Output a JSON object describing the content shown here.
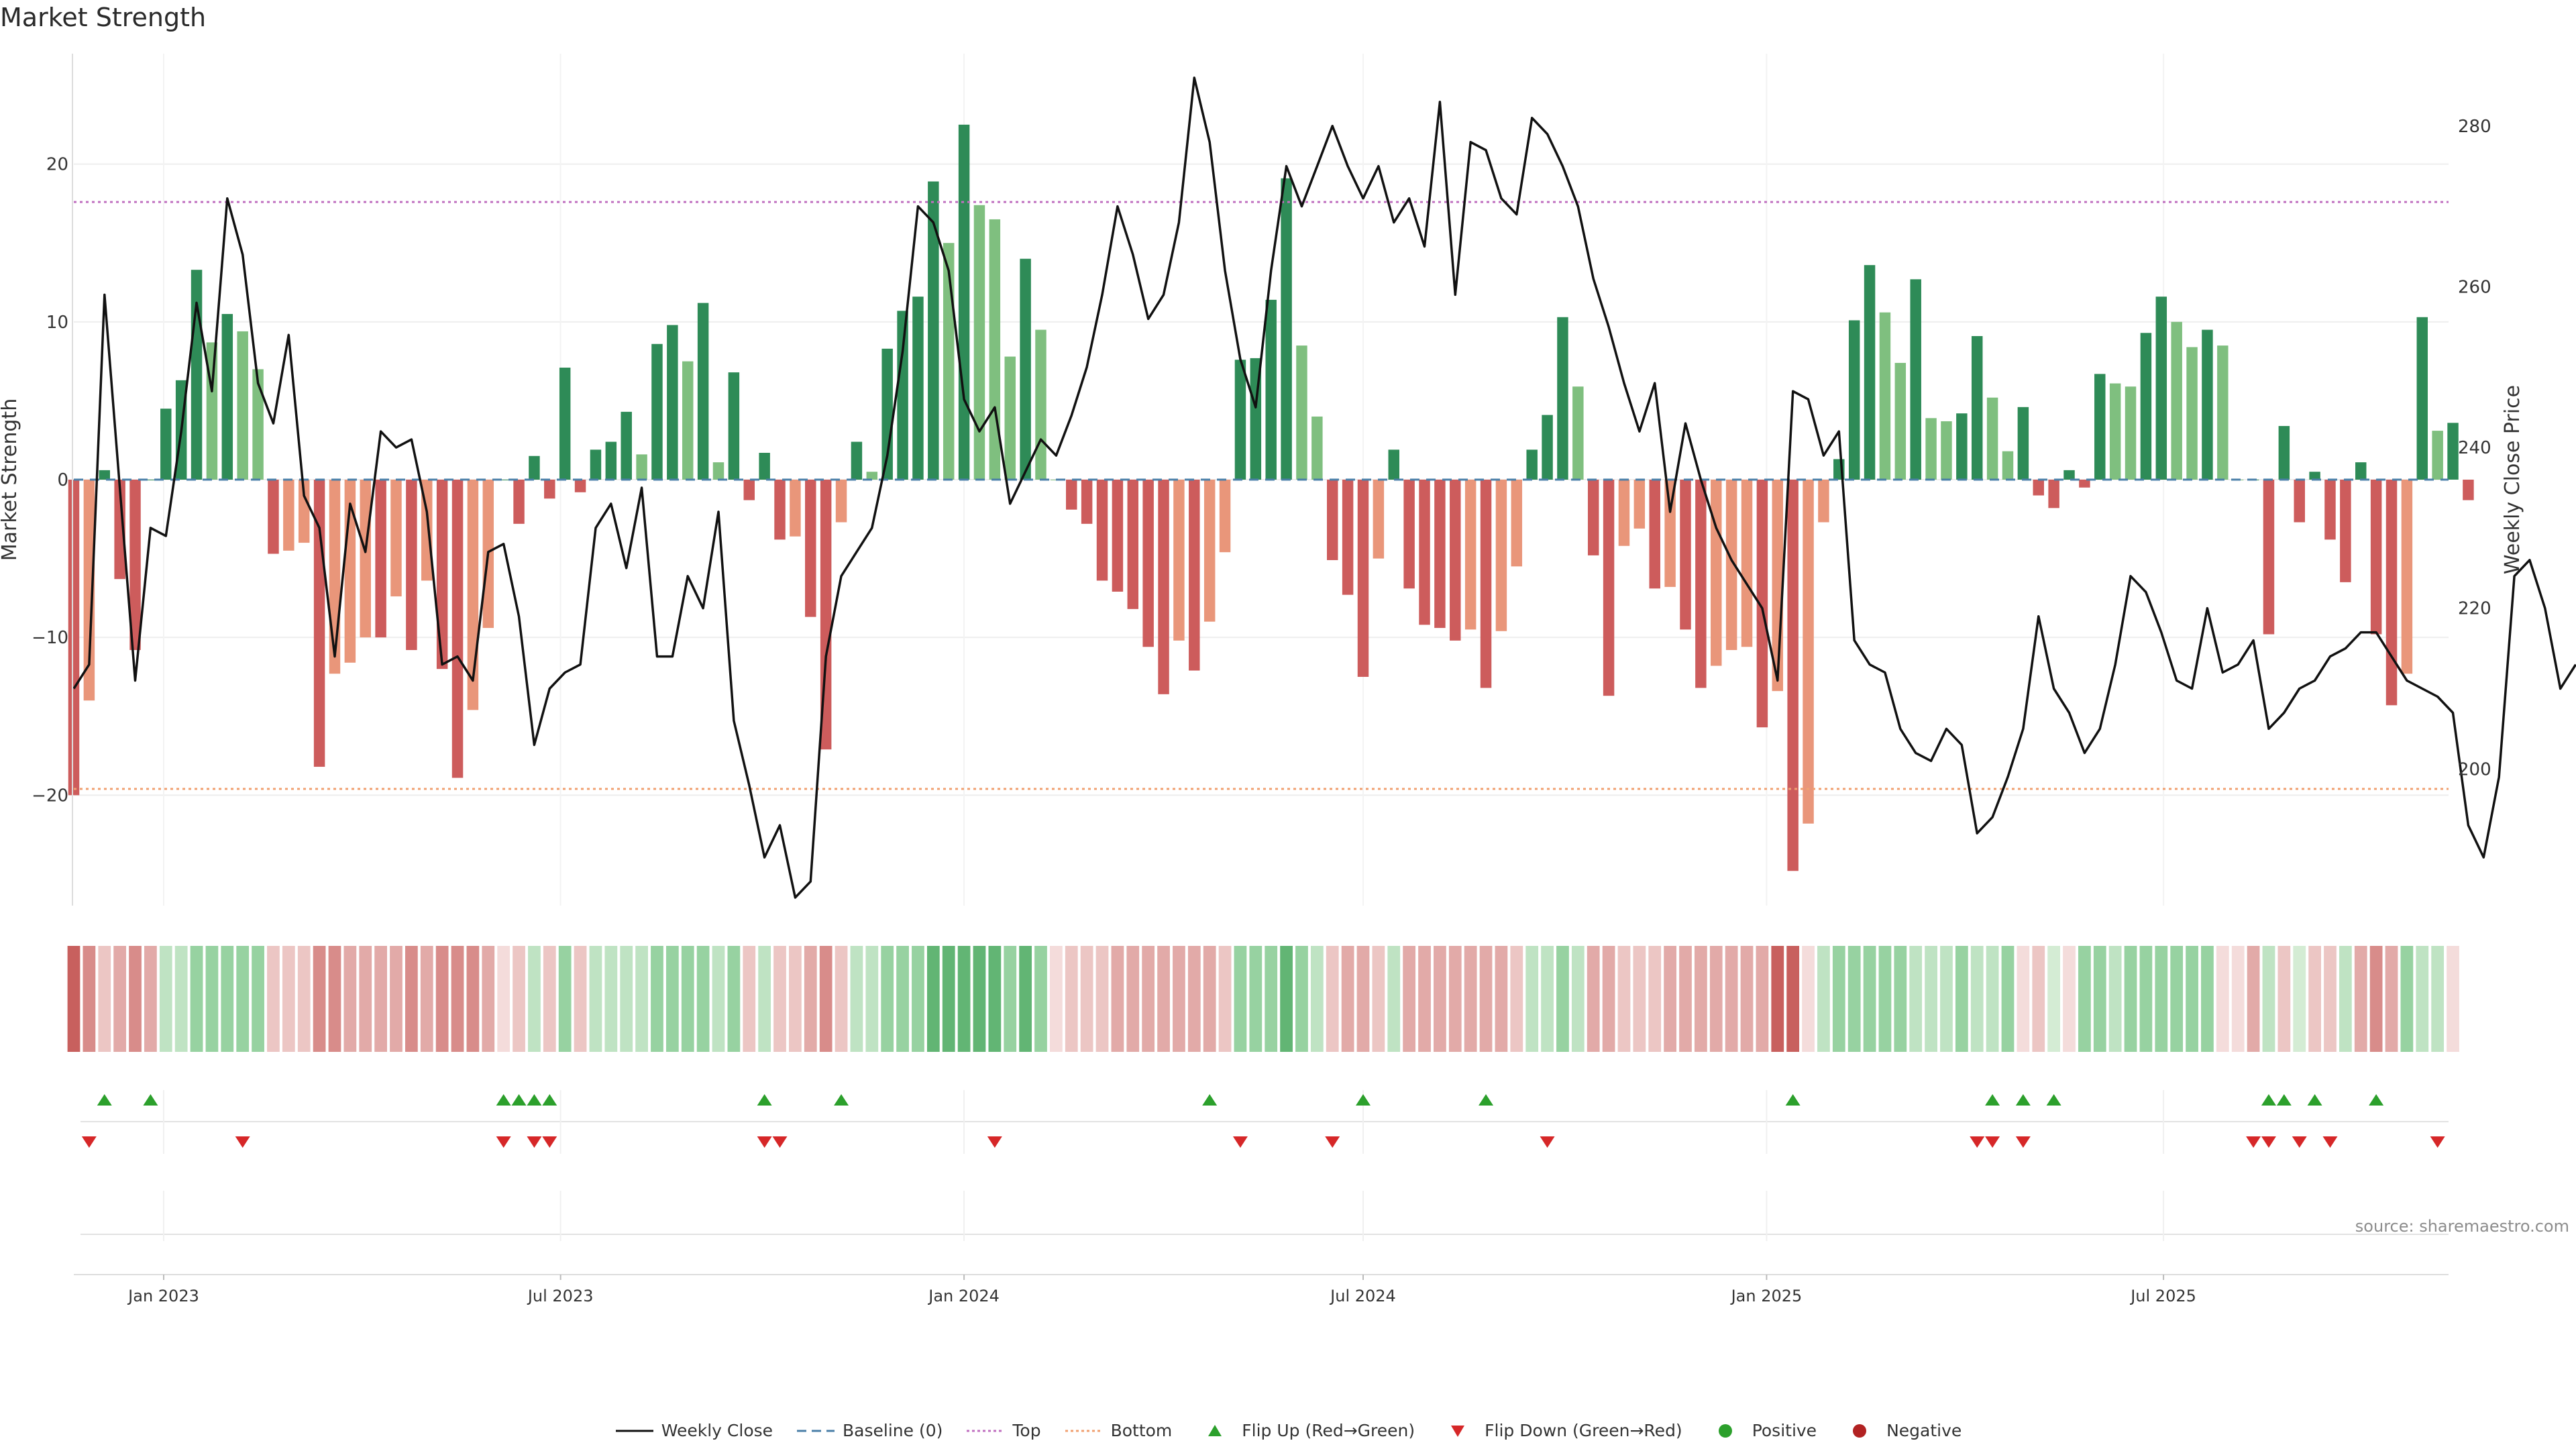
{
  "title": "Market Strength",
  "source": "source: sharemaestro.com",
  "colors": {
    "green_dark": "#2e8b57",
    "green_light": "#7fbf7f",
    "red_dark": "#cd5c5c",
    "red_light": "#e9967a",
    "line": "#111111",
    "baseline": "#4a7fa8",
    "top": "#c070c0",
    "bottom": "#f0a070",
    "flip_up": "#2ca02c",
    "flip_down": "#d62728",
    "positive": "#2ca02c",
    "negative": "#b22222"
  },
  "legend": [
    {
      "label": "Weekly Close",
      "kind": "line-solid",
      "color": "#111111"
    },
    {
      "label": "Baseline (0)",
      "kind": "line-dash",
      "color": "#4a7fa8"
    },
    {
      "label": "Top",
      "kind": "line-dot",
      "color": "#c070c0"
    },
    {
      "label": "Bottom",
      "kind": "line-dot",
      "color": "#f0a070"
    },
    {
      "label": "Flip Up (Red→Green)",
      "kind": "tri-up",
      "color": "#2ca02c"
    },
    {
      "label": "Flip Down (Green→Red)",
      "kind": "tri-down",
      "color": "#d62728"
    },
    {
      "label": "Positive",
      "kind": "dot",
      "color": "#2ca02c"
    },
    {
      "label": "Negative",
      "kind": "dot",
      "color": "#b22222"
    }
  ],
  "chart_data": {
    "type": "bar",
    "title": "Market Strength",
    "ylabel": "Market Strength",
    "y2label": "Weekly Close Price",
    "ylim": [
      -27,
      27
    ],
    "y2lim": [
      183,
      289
    ],
    "yticks": [
      20,
      10,
      0,
      -10,
      -20
    ],
    "y2ticks": [
      280,
      260,
      240,
      220,
      200
    ],
    "top_level": 17.6,
    "bottom_level": -19.6,
    "x_start": "2022-11-21",
    "x_step_days": 7,
    "x_end": "2025-11-08",
    "xticks": [
      {
        "date": "2023-01-01",
        "label": "Jan 2023"
      },
      {
        "date": "2023-07-01",
        "label": "Jul 2023"
      },
      {
        "date": "2024-01-01",
        "label": "Jan 2024"
      },
      {
        "date": "2024-07-01",
        "label": "Jul 2024"
      },
      {
        "date": "2025-01-01",
        "label": "Jan 2025"
      },
      {
        "date": "2025-07-01",
        "label": "Jul 2025"
      }
    ],
    "grid": true,
    "legend_position": "bottom",
    "series": [
      {
        "name": "Market Strength",
        "values": [
          -20,
          -14,
          0.6,
          -6.3,
          -10.8,
          0,
          4.5,
          6.3,
          13.3,
          8.7,
          10.5,
          9.4,
          7,
          -4.7,
          -4.5,
          -4,
          -18.2,
          -12.3,
          -11.6,
          -10,
          -10,
          -7.4,
          -10.8,
          -6.4,
          -12,
          -18.9,
          -14.6,
          -9.4,
          0,
          -2.8,
          1.5,
          -1.2,
          7.1,
          -0.8,
          1.9,
          2.4,
          4.3,
          1.6,
          8.6,
          9.8,
          7.5,
          11.2,
          1.1,
          6.8,
          -1.3,
          1.7,
          -3.8,
          -3.6,
          -8.7,
          -17.1,
          -2.7,
          2.4,
          0.5,
          8.3,
          10.7,
          11.6,
          18.9,
          15,
          22.5,
          17.4,
          16.5,
          7.8,
          14,
          9.5,
          0,
          -1.9,
          -2.8,
          -6.4,
          -7.1,
          -8.2,
          -10.6,
          -13.6,
          -10.2,
          -12.1,
          -9,
          -4.6,
          7.6,
          7.7,
          11.4,
          19.1,
          8.5,
          4,
          -5.1,
          -7.3,
          -12.5,
          -5,
          1.9,
          -6.9,
          -9.2,
          -9.4,
          -10.2,
          -9.5,
          -13.2,
          -9.6,
          -5.5,
          1.9,
          4.1,
          10.3,
          5.9,
          -4.8,
          -13.7,
          -4.2,
          -3.1,
          -6.9,
          -6.8,
          -9.5,
          -13.2,
          -11.8,
          -10.8,
          -10.6,
          -15.7,
          -13.4,
          -24.8,
          -21.8,
          -2.7,
          1.3,
          10.1,
          13.6,
          10.6,
          7.4,
          12.7,
          3.9,
          3.7,
          4.2,
          9.1,
          5.2,
          1.8,
          4.6,
          -1,
          -1.8,
          0.6,
          -0.5,
          6.7,
          6.1,
          5.9,
          9.3,
          11.6,
          10,
          8.4,
          9.5,
          8.5,
          0,
          0,
          -9.8,
          3.4,
          -2.7,
          0.5,
          -3.8,
          -6.5,
          1.1,
          -9.8,
          -14.3,
          -12.3,
          10.3,
          3.1,
          3.6,
          -1.3
        ]
      },
      {
        "name": "Weekly Close",
        "values": [
          210,
          213,
          259,
          235,
          211,
          230,
          229,
          242,
          258,
          247,
          271,
          264,
          248,
          243,
          254,
          234,
          230,
          214,
          233,
          227,
          242,
          240,
          241,
          232,
          213,
          214,
          211,
          227,
          228,
          219,
          203,
          210,
          212,
          213,
          230,
          233,
          225,
          235,
          214,
          214,
          224,
          220,
          232,
          206,
          198,
          189,
          193,
          184,
          186,
          214,
          224,
          227,
          230,
          239,
          252,
          270,
          268,
          262,
          246,
          242,
          245,
          233,
          237,
          241,
          239,
          244,
          250,
          259,
          270,
          264,
          256,
          259,
          268,
          286,
          278,
          262,
          251,
          245,
          262,
          275,
          270,
          275,
          280,
          275,
          271,
          275,
          268,
          271,
          265,
          283,
          259,
          278,
          277,
          271,
          269,
          281,
          279,
          275,
          270,
          261,
          255,
          248,
          242,
          248,
          232,
          243,
          236,
          230,
          226,
          223,
          220,
          211,
          247,
          246,
          239,
          242,
          216,
          213,
          212,
          205,
          202,
          201,
          205,
          203,
          192,
          194,
          199,
          205,
          219,
          210,
          207,
          202,
          205,
          213,
          224,
          222,
          217,
          211,
          210,
          220,
          212,
          213,
          216,
          205,
          207,
          210,
          211,
          214,
          215,
          217,
          217,
          214,
          211,
          210,
          209,
          207,
          193,
          189,
          199,
          224,
          226,
          220,
          210,
          213
        ]
      }
    ],
    "strength_panel": [
      -5,
      -4,
      -2,
      -3,
      -4,
      -3,
      2,
      2,
      3,
      3,
      3,
      3,
      3,
      -2,
      -2,
      -2,
      -4,
      -4,
      -3,
      -3,
      -3,
      -3,
      -4,
      -3,
      -4,
      -4,
      -4,
      -3,
      -1,
      -2,
      2,
      -2,
      3,
      -2,
      2,
      2,
      2,
      2,
      3,
      3,
      3,
      3,
      2,
      3,
      -2,
      2,
      -2,
      -2,
      -3,
      -4,
      -2,
      2,
      2,
      3,
      3,
      3,
      4,
      4,
      4,
      4,
      4,
      3,
      4,
      3,
      -1,
      -2,
      -2,
      -2,
      -3,
      -3,
      -3,
      -3,
      -3,
      -3,
      -3,
      -2,
      3,
      3,
      3,
      4,
      3,
      2,
      -2,
      -3,
      -3,
      -2,
      2,
      -3,
      -3,
      -3,
      -3,
      -3,
      -3,
      -3,
      -2,
      2,
      2,
      3,
      2,
      -3,
      -3,
      -2,
      -2,
      -2,
      -3,
      -3,
      -3,
      -3,
      -3,
      -3,
      -3,
      -5,
      -5,
      -1,
      2,
      3,
      3,
      3,
      3,
      3,
      2,
      2,
      2,
      3,
      2,
      2,
      3,
      -1,
      -2,
      1,
      -1,
      3,
      3,
      2,
      3,
      3,
      3,
      3,
      3,
      3,
      -1,
      -1,
      -3,
      2,
      -2,
      1,
      -2,
      -2,
      2,
      -3,
      -4,
      -3,
      3,
      2,
      2,
      -1
    ],
    "flips_up": [
      "2022-12-05",
      "2022-12-26",
      "2023-06-05",
      "2023-06-12",
      "2023-06-19",
      "2023-06-26",
      "2023-10-02",
      "2023-11-06",
      "2024-04-22",
      "2024-07-01",
      "2024-08-26",
      "2025-01-13",
      "2025-04-14",
      "2025-04-28",
      "2025-05-12",
      "2025-08-18",
      "2025-08-25",
      "2025-09-08",
      "2025-10-06"
    ],
    "flips_down": [
      "2022-11-28",
      "2023-02-06",
      "2023-06-05",
      "2023-06-19",
      "2023-06-26",
      "2023-10-02",
      "2023-10-09",
      "2024-01-15",
      "2024-05-06",
      "2024-06-17",
      "2024-09-23",
      "2025-04-07",
      "2025-04-14",
      "2025-04-28",
      "2025-08-11",
      "2025-08-18",
      "2025-09-01",
      "2025-09-15",
      "2025-11-03"
    ]
  }
}
